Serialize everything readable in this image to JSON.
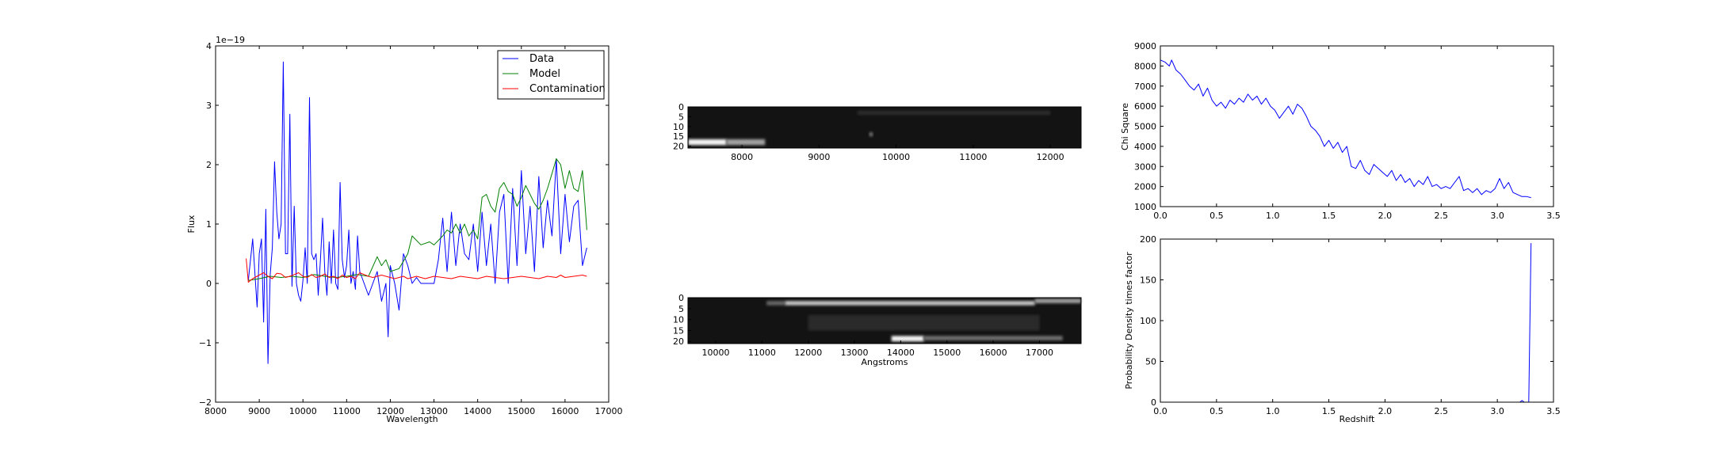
{
  "colors": {
    "data": "#0000ff",
    "model": "#008000",
    "contamination": "#ff0000",
    "axes": "#000000"
  },
  "chart_data": [
    {
      "type": "line",
      "xlabel": "Wavelength",
      "ylabel": "Flux",
      "offset_text": "1e−19",
      "xlim": [
        8000,
        17000
      ],
      "ylim": [
        -2,
        4
      ],
      "xticks": [
        "8000",
        "9000",
        "10000",
        "11000",
        "12000",
        "13000",
        "14000",
        "15000",
        "16000",
        "17000"
      ],
      "yticks": [
        "−2",
        "−1",
        "0",
        "1",
        "2",
        "3",
        "4"
      ],
      "legend": {
        "placement": "upper right",
        "entries": [
          "Data",
          "Model",
          "Contamination"
        ]
      },
      "series": [
        {
          "name": "Data",
          "color": "#0000ff",
          "x": [
            8750,
            8850,
            8950,
            9000,
            9050,
            9100,
            9150,
            9200,
            9250,
            9300,
            9350,
            9400,
            9450,
            9500,
            9550,
            9600,
            9650,
            9700,
            9750,
            9800,
            9850,
            9900,
            9950,
            10000,
            10050,
            10100,
            10150,
            10200,
            10250,
            10300,
            10350,
            10400,
            10450,
            10500,
            10550,
            10600,
            10650,
            10700,
            10750,
            10800,
            10850,
            10900,
            10950,
            11000,
            11050,
            11100,
            11150,
            11200,
            11250,
            11300,
            11400,
            11500,
            11600,
            11700,
            11800,
            11900,
            11950,
            12000,
            12100,
            12200,
            12300,
            12400,
            12500,
            12600,
            12700,
            12800,
            12900,
            13000,
            13100,
            13200,
            13300,
            13400,
            13500,
            13600,
            13700,
            13800,
            13900,
            14000,
            14100,
            14200,
            14300,
            14400,
            14500,
            14600,
            14700,
            14800,
            14900,
            15000,
            15100,
            15200,
            15300,
            15400,
            15500,
            15600,
            15700,
            15800,
            15900,
            16000,
            16100,
            16200,
            16300,
            16400,
            16500
          ],
          "y": [
            0.05,
            0.75,
            -0.4,
            0.5,
            0.75,
            -0.65,
            1.25,
            -1.35,
            0.15,
            0.6,
            2.05,
            1.2,
            0.75,
            1.0,
            3.73,
            0.5,
            0.5,
            2.85,
            -0.05,
            1.3,
            0.0,
            -0.2,
            -0.3,
            0.05,
            0.6,
            0.0,
            3.13,
            0.5,
            0.4,
            0.5,
            -0.2,
            0.4,
            1.1,
            0.2,
            -0.2,
            0.7,
            0.0,
            0.9,
            0.0,
            -0.1,
            1.7,
            0.4,
            0.1,
            0.3,
            0.9,
            0.0,
            0.2,
            -0.1,
            0.8,
            0.2,
            0.0,
            -0.2,
            0.0,
            0.2,
            -0.3,
            0.0,
            -0.9,
            0.3,
            0.0,
            -0.45,
            0.5,
            0.3,
            0.0,
            0.1,
            0.0,
            0.0,
            0.0,
            0.0,
            0.4,
            1.1,
            0.2,
            1.2,
            0.3,
            1.0,
            0.5,
            0.4,
            1.0,
            0.2,
            1.2,
            0.3,
            1.0,
            0.0,
            1.2,
            1.5,
            0.0,
            1.6,
            0.3,
            1.9,
            0.5,
            1.3,
            0.2,
            1.8,
            0.6,
            1.4,
            0.8,
            2.1,
            0.5,
            1.5,
            0.7,
            1.3,
            1.4,
            0.3,
            0.6
          ]
        },
        {
          "name": "Model",
          "color": "#008000",
          "x": [
            8750,
            9000,
            9250,
            9500,
            9750,
            10000,
            10250,
            10500,
            10750,
            11000,
            11250,
            11500,
            11700,
            11800,
            11900,
            12000,
            12200,
            12400,
            12500,
            12700,
            12900,
            13000,
            13200,
            13300,
            13400,
            13500,
            13600,
            13700,
            13800,
            13900,
            14000,
            14100,
            14200,
            14300,
            14400,
            14500,
            14600,
            14700,
            14800,
            14900,
            15000,
            15100,
            15200,
            15300,
            15400,
            15500,
            15600,
            15700,
            15800,
            15900,
            16000,
            16100,
            16200,
            16300,
            16400,
            16500
          ],
          "y": [
            0.05,
            0.08,
            0.12,
            0.1,
            0.12,
            0.1,
            0.15,
            0.12,
            0.1,
            0.12,
            0.15,
            0.12,
            0.45,
            0.3,
            0.4,
            0.2,
            0.25,
            0.5,
            0.8,
            0.65,
            0.7,
            0.65,
            0.8,
            0.9,
            0.85,
            1.0,
            0.85,
            1.0,
            0.8,
            0.9,
            0.75,
            1.45,
            1.5,
            1.3,
            1.2,
            1.6,
            1.7,
            1.55,
            1.5,
            1.3,
            1.45,
            1.65,
            1.5,
            1.35,
            1.25,
            1.4,
            1.6,
            1.85,
            2.1,
            2.0,
            1.6,
            1.9,
            1.6,
            1.55,
            1.9,
            0.9
          ]
        },
        {
          "name": "Contamination",
          "color": "#ff0000",
          "x": [
            8700,
            8750,
            8850,
            9000,
            9100,
            9200,
            9300,
            9400,
            9500,
            9600,
            9700,
            9800,
            9900,
            10000,
            10100,
            10200,
            10300,
            10400,
            10500,
            10600,
            10700,
            10800,
            10900,
            11000,
            11100,
            11200,
            11300,
            11400,
            11500,
            11600,
            11700,
            11800,
            11900,
            12000,
            12100,
            12200,
            12300,
            12400,
            12500,
            12600,
            12700,
            12800,
            12900,
            13000,
            13200,
            13400,
            13600,
            13800,
            14000,
            14200,
            14400,
            14600,
            14800,
            15000,
            15200,
            15400,
            15600,
            15800,
            15900,
            16000,
            16200,
            16400,
            16500
          ],
          "y": [
            0.42,
            0.02,
            0.08,
            0.14,
            0.18,
            0.12,
            0.08,
            0.17,
            0.16,
            0.1,
            0.12,
            0.15,
            0.18,
            0.12,
            0.1,
            0.15,
            0.1,
            0.12,
            0.16,
            0.1,
            0.12,
            0.08,
            0.14,
            0.1,
            0.12,
            0.08,
            0.18,
            0.15,
            0.12,
            0.1,
            0.12,
            0.14,
            0.12,
            0.1,
            0.08,
            0.1,
            0.12,
            0.08,
            0.1,
            0.12,
            0.1,
            0.08,
            0.1,
            0.12,
            0.1,
            0.08,
            0.12,
            0.1,
            0.08,
            0.12,
            0.1,
            0.08,
            0.1,
            0.12,
            0.1,
            0.08,
            0.12,
            0.1,
            0.14,
            0.1,
            0.12,
            0.14,
            0.12
          ]
        }
      ]
    },
    {
      "type": "heatmap",
      "xlim": [
        7300,
        12400
      ],
      "ylim": [
        21,
        0
      ],
      "xticks": [
        "8000",
        "9000",
        "10000",
        "11000",
        "12000"
      ],
      "yticks": [
        "0",
        "5",
        "10",
        "15",
        "20"
      ],
      "features": [
        {
          "x0": 7300,
          "x1": 7800,
          "y0": 16.5,
          "y1": 19.5,
          "level": 0.95
        },
        {
          "x0": 7800,
          "x1": 8300,
          "y0": 16.5,
          "y1": 19.5,
          "level": 0.6
        },
        {
          "x0": 9500,
          "x1": 12000,
          "y0": 2,
          "y1": 4,
          "level": 0.12
        },
        {
          "x0": 9650,
          "x1": 9700,
          "y0": 13,
          "y1": 15,
          "level": 0.4
        }
      ]
    },
    {
      "type": "heatmap",
      "xlabel": "Angstroms",
      "xlim": [
        9400,
        17900
      ],
      "ylim": [
        21,
        0
      ],
      "xticks": [
        "10000",
        "11000",
        "12000",
        "13000",
        "14000",
        "15000",
        "16000",
        "17000"
      ],
      "yticks": [
        "0",
        "5",
        "10",
        "15",
        "20"
      ],
      "features": [
        {
          "x0": 11100,
          "x1": 11500,
          "y0": 1.5,
          "y1": 3.5,
          "level": 0.35
        },
        {
          "x0": 11500,
          "x1": 16900,
          "y0": 1.5,
          "y1": 3.5,
          "level": 0.75
        },
        {
          "x0": 16900,
          "x1": 17900,
          "y0": 0.5,
          "y1": 2.5,
          "level": 0.6
        },
        {
          "x0": 13800,
          "x1": 14500,
          "y0": 17.5,
          "y1": 20,
          "level": 0.95
        },
        {
          "x0": 14500,
          "x1": 17500,
          "y0": 17.5,
          "y1": 19.5,
          "level": 0.4
        },
        {
          "x0": 12000,
          "x1": 17000,
          "y0": 8,
          "y1": 15,
          "level": 0.1
        }
      ]
    },
    {
      "type": "line",
      "ylabel": "Chi Square",
      "xlim": [
        0.0,
        3.5
      ],
      "ylim": [
        1000,
        9000
      ],
      "xticks": [
        "0.0",
        "0.5",
        "1.0",
        "1.5",
        "2.0",
        "2.5",
        "3.0",
        "3.5"
      ],
      "yticks": [
        "1000",
        "2000",
        "3000",
        "4000",
        "5000",
        "6000",
        "7000",
        "8000",
        "9000"
      ],
      "series": [
        {
          "color": "#0000ff",
          "x": [
            0.0,
            0.04,
            0.08,
            0.1,
            0.14,
            0.18,
            0.22,
            0.26,
            0.3,
            0.34,
            0.38,
            0.42,
            0.46,
            0.5,
            0.54,
            0.58,
            0.62,
            0.66,
            0.7,
            0.74,
            0.78,
            0.82,
            0.86,
            0.9,
            0.94,
            0.98,
            1.02,
            1.06,
            1.1,
            1.14,
            1.18,
            1.22,
            1.26,
            1.3,
            1.34,
            1.38,
            1.42,
            1.46,
            1.5,
            1.54,
            1.58,
            1.62,
            1.66,
            1.7,
            1.74,
            1.78,
            1.82,
            1.86,
            1.9,
            1.94,
            1.98,
            2.02,
            2.06,
            2.1,
            2.14,
            2.18,
            2.22,
            2.26,
            2.3,
            2.34,
            2.38,
            2.42,
            2.46,
            2.5,
            2.54,
            2.58,
            2.62,
            2.66,
            2.7,
            2.74,
            2.78,
            2.82,
            2.86,
            2.9,
            2.94,
            2.98,
            3.02,
            3.06,
            3.1,
            3.14,
            3.18,
            3.22,
            3.26,
            3.3
          ],
          "y": [
            8300,
            8200,
            8000,
            8300,
            7800,
            7600,
            7300,
            7000,
            6800,
            7100,
            6500,
            6900,
            6300,
            6000,
            6200,
            5900,
            6300,
            6100,
            6400,
            6200,
            6600,
            6300,
            6500,
            6100,
            6400,
            6000,
            5800,
            5400,
            5700,
            6000,
            5600,
            6100,
            5900,
            5500,
            5000,
            4800,
            4500,
            4000,
            4300,
            3900,
            4200,
            3700,
            4000,
            3000,
            2900,
            3300,
            2800,
            2600,
            3100,
            2900,
            2700,
            2500,
            2800,
            2300,
            2600,
            2200,
            2400,
            2000,
            2300,
            2100,
            2500,
            2000,
            2100,
            1900,
            2000,
            1900,
            2200,
            2500,
            1800,
            1900,
            1700,
            1900,
            1600,
            1800,
            1700,
            1900,
            2400,
            1900,
            2200,
            1700,
            1600,
            1500,
            1500,
            1450
          ]
        }
      ]
    },
    {
      "type": "line",
      "xlabel": "Redshift",
      "ylabel": "Probability Density times factor",
      "xlim": [
        0.0,
        3.5
      ],
      "ylim": [
        0,
        200
      ],
      "xticks": [
        "0.0",
        "0.5",
        "1.0",
        "1.5",
        "2.0",
        "2.5",
        "3.0",
        "3.5"
      ],
      "yticks": [
        "0",
        "50",
        "100",
        "150",
        "200"
      ],
      "series": [
        {
          "color": "#0000ff",
          "x": [
            0.0,
            3.1,
            3.2,
            3.22,
            3.24,
            3.26,
            3.28,
            3.3
          ],
          "y": [
            0,
            0,
            0,
            2,
            0,
            0,
            0,
            195
          ]
        }
      ]
    }
  ]
}
